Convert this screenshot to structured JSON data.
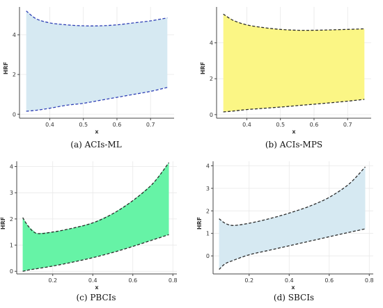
{
  "chart_data": [
    {
      "type": "area",
      "caption": "(a) ACIs-ML",
      "xlabel": "x",
      "ylabel": "HRF",
      "xlim": [
        0.31,
        0.77
      ],
      "ylim": [
        -0.2,
        5.4
      ],
      "xticks": [
        0.4,
        0.5,
        0.6,
        0.7
      ],
      "yticks": [
        0,
        2,
        4
      ],
      "fill_color": "#d6e9f2",
      "line_color": "#2f3fb5",
      "x": [
        0.33,
        0.36,
        0.4,
        0.45,
        0.5,
        0.55,
        0.6,
        0.65,
        0.7,
        0.75
      ],
      "upper": [
        5.2,
        4.8,
        4.6,
        4.5,
        4.45,
        4.45,
        4.5,
        4.6,
        4.7,
        4.85
      ],
      "lower": [
        0.15,
        0.2,
        0.3,
        0.45,
        0.55,
        0.7,
        0.85,
        1.0,
        1.15,
        1.35
      ]
    },
    {
      "type": "area",
      "caption": "(b) ACIs-MPS",
      "xlabel": "x",
      "ylabel": "HRF",
      "xlim": [
        0.31,
        0.77
      ],
      "ylim": [
        -0.2,
        6.0
      ],
      "xticks": [
        0.4,
        0.5,
        0.6,
        0.7
      ],
      "yticks": [
        0,
        2,
        4
      ],
      "fill_color": "#fbf685",
      "line_color": "#2a2a2a",
      "x": [
        0.33,
        0.36,
        0.4,
        0.45,
        0.5,
        0.55,
        0.6,
        0.65,
        0.7,
        0.75
      ],
      "upper": [
        5.6,
        5.25,
        5.0,
        4.85,
        4.75,
        4.7,
        4.7,
        4.72,
        4.75,
        4.78
      ],
      "lower": [
        0.15,
        0.2,
        0.28,
        0.35,
        0.42,
        0.5,
        0.58,
        0.66,
        0.75,
        0.85
      ]
    },
    {
      "type": "area",
      "caption": "(c) PBCIs",
      "xlabel": "x",
      "ylabel": "HRF",
      "xlim": [
        0.02,
        0.82
      ],
      "ylim": [
        -0.1,
        4.2
      ],
      "xticks": [
        0.2,
        0.4,
        0.6,
        0.8
      ],
      "yticks": [
        0,
        1,
        2,
        3,
        4
      ],
      "fill_color": "#66f3a6",
      "line_color": "#2a2a2a",
      "x": [
        0.05,
        0.08,
        0.12,
        0.2,
        0.3,
        0.4,
        0.5,
        0.6,
        0.7,
        0.78
      ],
      "upper": [
        2.05,
        1.7,
        1.45,
        1.5,
        1.65,
        1.85,
        2.2,
        2.7,
        3.35,
        4.15
      ],
      "lower": [
        0.0,
        0.05,
        0.1,
        0.2,
        0.35,
        0.52,
        0.72,
        0.95,
        1.2,
        1.4
      ]
    },
    {
      "type": "area",
      "caption": "(d) SBCIs",
      "xlabel": "x",
      "ylabel": "HRF",
      "xlim": [
        0.02,
        0.82
      ],
      "ylim": [
        -0.8,
        4.2
      ],
      "xticks": [
        0.2,
        0.4,
        0.6,
        0.8
      ],
      "yticks": [
        0,
        1,
        2,
        3,
        4
      ],
      "fill_color": "#d6e9f2",
      "line_color": "#2a2a2a",
      "x": [
        0.05,
        0.08,
        0.12,
        0.2,
        0.3,
        0.4,
        0.5,
        0.6,
        0.7,
        0.78
      ],
      "upper": [
        1.65,
        1.45,
        1.35,
        1.45,
        1.65,
        1.9,
        2.2,
        2.6,
        3.2,
        3.95
      ],
      "lower": [
        -0.6,
        -0.35,
        -0.2,
        0.05,
        0.25,
        0.45,
        0.65,
        0.85,
        1.05,
        1.2
      ]
    }
  ]
}
